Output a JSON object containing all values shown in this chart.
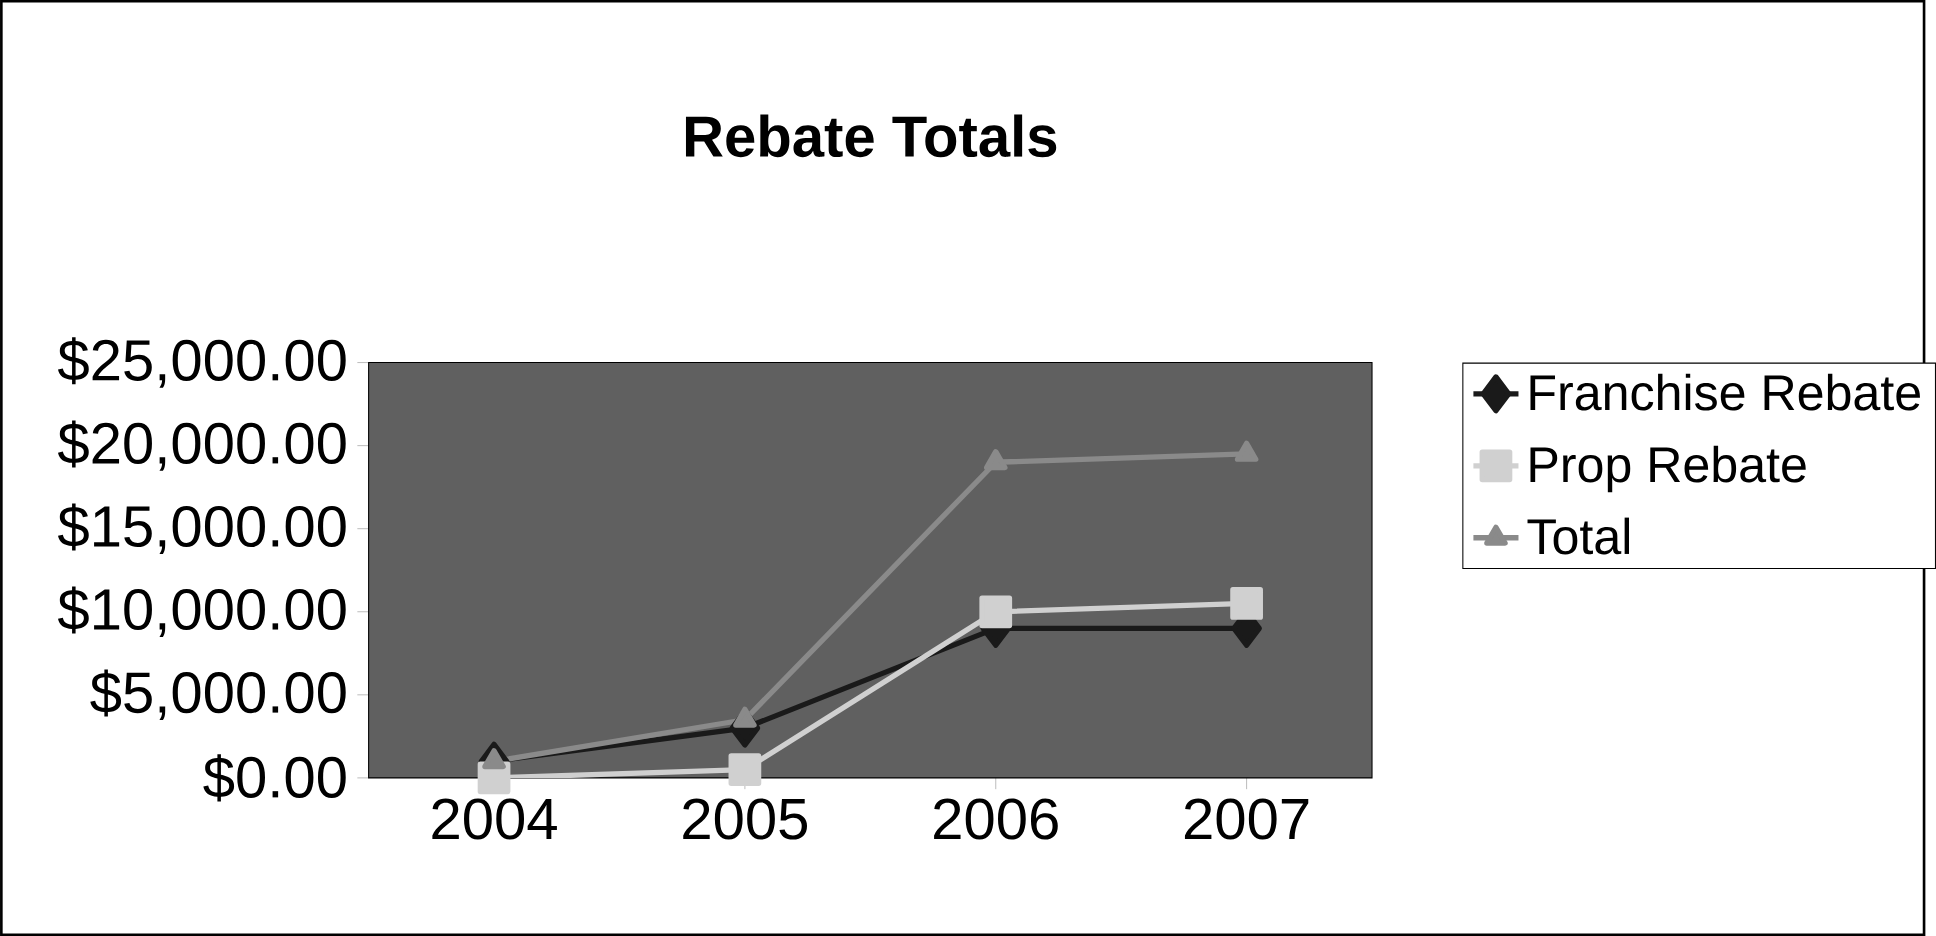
{
  "chart_data": {
    "type": "line",
    "title": "Rebate Totals",
    "categories": [
      "2004",
      "2005",
      "2006",
      "2007"
    ],
    "series": [
      {
        "name": "Franchise Rebate",
        "color": "#1a1a1a",
        "marker": "diamond",
        "values": [
          1000,
          3000,
          9000,
          9000
        ]
      },
      {
        "name": "Prop Rebate",
        "color": "#d0d0d0",
        "marker": "square",
        "values": [
          0,
          500,
          10000,
          10500
        ]
      },
      {
        "name": "Total",
        "color": "#8a8a8a",
        "marker": "triangle",
        "values": [
          1000,
          3500,
          19000,
          19500
        ]
      }
    ],
    "ylim": [
      0,
      25000
    ],
    "yticks": [
      {
        "value": 0,
        "label": "$0.00"
      },
      {
        "value": 5000,
        "label": "$5,000.00"
      },
      {
        "value": 10000,
        "label": "$10,000.00"
      },
      {
        "value": 15000,
        "label": "$15,000.00"
      },
      {
        "value": 20000,
        "label": "$20,000.00"
      },
      {
        "value": 25000,
        "label": "$25,000.00"
      }
    ],
    "grid": false,
    "legend": "right"
  }
}
